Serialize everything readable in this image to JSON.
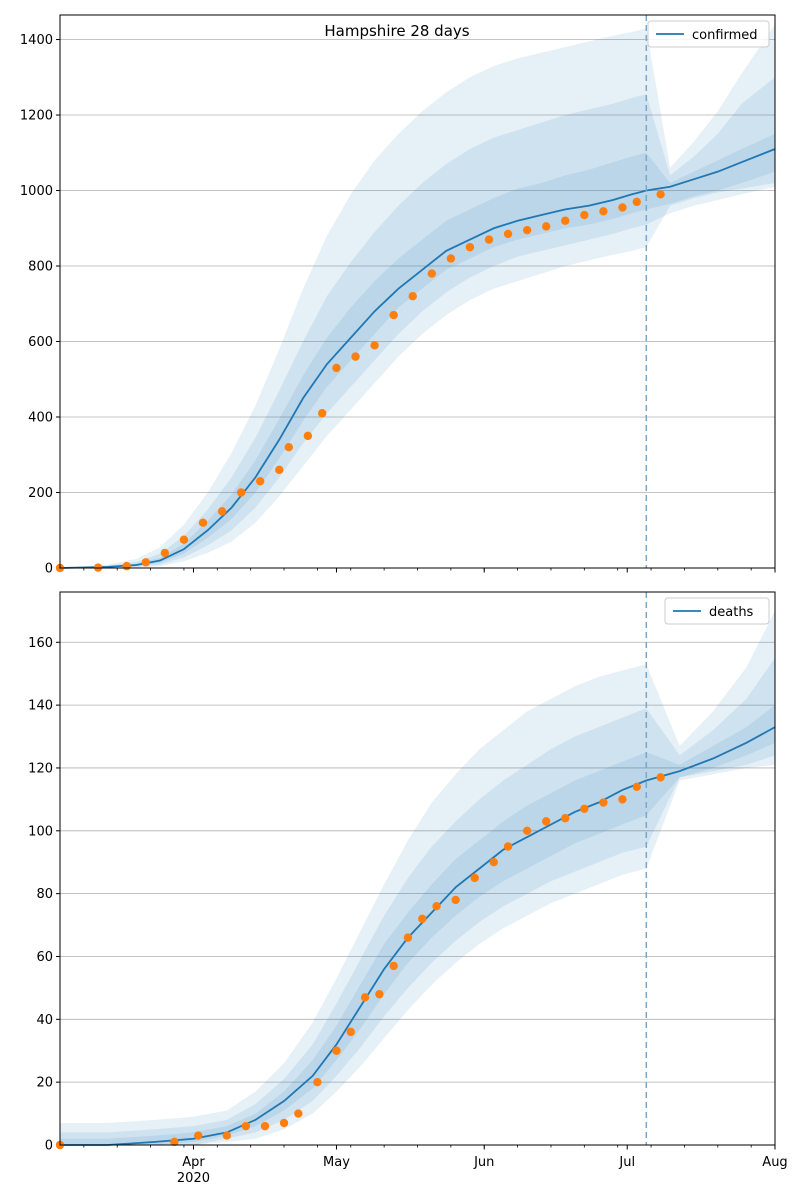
{
  "figure": {
    "title": "Hampshire 28 days"
  },
  "colors": {
    "model_line": "#1f77b4",
    "band": "#1f77b4",
    "observed": "#ff7f0e",
    "grid": "#b0b0b0",
    "cutoff_line": "#7aa6cc"
  },
  "chart_data": [
    {
      "type": "line",
      "legend": "confirmed",
      "legend_position": "top-right",
      "x_axis": {
        "type": "date",
        "range": [
          "2020-03-04",
          "2020-08-01"
        ],
        "tick_labels": []
      },
      "y_axis": {
        "range": [
          0,
          1465
        ],
        "ticks": [
          0,
          200,
          400,
          600,
          800,
          1000,
          1200,
          1400
        ]
      },
      "grid": "horizontal",
      "cutoff_date": "2020-07-05",
      "model": {
        "x": [
          "2020-03-04",
          "2020-03-14",
          "2020-03-20",
          "2020-03-25",
          "2020-03-30",
          "2020-04-04",
          "2020-04-09",
          "2020-04-14",
          "2020-04-19",
          "2020-04-24",
          "2020-04-29",
          "2020-05-04",
          "2020-05-09",
          "2020-05-14",
          "2020-05-19",
          "2020-05-24",
          "2020-05-29",
          "2020-06-03",
          "2020-06-08",
          "2020-06-13",
          "2020-06-18",
          "2020-06-23",
          "2020-06-28",
          "2020-07-02",
          "2020-07-05",
          "2020-07-10",
          "2020-07-15",
          "2020-07-20",
          "2020-07-25",
          "2020-08-01"
        ],
        "median": [
          0,
          3,
          8,
          20,
          50,
          100,
          160,
          240,
          340,
          450,
          540,
          610,
          680,
          740,
          790,
          840,
          870,
          900,
          920,
          935,
          950,
          960,
          975,
          990,
          1000,
          1010,
          1030,
          1050,
          1075,
          1110
        ],
        "band_50_low": [
          0,
          2,
          5,
          14,
          38,
          80,
          130,
          200,
          290,
          390,
          480,
          550,
          620,
          690,
          740,
          790,
          820,
          850,
          870,
          885,
          900,
          910,
          925,
          940,
          950,
          965,
          985,
          1000,
          1020,
          1050
        ],
        "band_50_high": [
          0,
          4,
          11,
          27,
          65,
          125,
          195,
          285,
          395,
          510,
          610,
          690,
          760,
          820,
          870,
          920,
          950,
          980,
          1005,
          1020,
          1040,
          1055,
          1075,
          1090,
          1100,
          1020,
          1050,
          1080,
          1110,
          1150
        ],
        "band_80_low": [
          0,
          1,
          3,
          9,
          28,
          60,
          100,
          160,
          240,
          330,
          410,
          480,
          550,
          620,
          680,
          730,
          770,
          800,
          825,
          840,
          855,
          870,
          885,
          900,
          910,
          940,
          960,
          975,
          990,
          1010
        ],
        "band_80_high": [
          0,
          6,
          16,
          38,
          85,
          155,
          240,
          345,
          470,
          600,
          720,
          810,
          890,
          960,
          1020,
          1070,
          1110,
          1140,
          1160,
          1180,
          1200,
          1215,
          1230,
          1245,
          1255,
          1040,
          1090,
          1150,
          1230,
          1300
        ],
        "band_95_low": [
          0,
          0,
          1,
          5,
          18,
          40,
          70,
          120,
          190,
          270,
          350,
          420,
          490,
          560,
          620,
          670,
          710,
          740,
          760,
          780,
          800,
          815,
          830,
          840,
          850,
          960,
          980,
          995,
          1005,
          1020
        ],
        "band_95_high": [
          0,
          9,
          24,
          55,
          115,
          200,
          305,
          430,
          580,
          740,
          880,
          990,
          1080,
          1150,
          1210,
          1260,
          1300,
          1330,
          1350,
          1365,
          1380,
          1395,
          1410,
          1420,
          1430,
          1060,
          1130,
          1210,
          1310,
          1440
        ]
      },
      "observed": {
        "x": [
          "2020-03-04",
          "2020-03-12",
          "2020-03-18",
          "2020-03-22",
          "2020-03-26",
          "2020-03-30",
          "2020-04-03",
          "2020-04-07",
          "2020-04-11",
          "2020-04-15",
          "2020-04-19",
          "2020-04-21",
          "2020-04-25",
          "2020-04-28",
          "2020-05-01",
          "2020-05-05",
          "2020-05-09",
          "2020-05-13",
          "2020-05-17",
          "2020-05-21",
          "2020-05-25",
          "2020-05-29",
          "2020-06-02",
          "2020-06-06",
          "2020-06-10",
          "2020-06-14",
          "2020-06-18",
          "2020-06-22",
          "2020-06-26",
          "2020-06-30",
          "2020-07-03",
          "2020-07-08"
        ],
        "y": [
          0,
          1,
          5,
          15,
          40,
          75,
          120,
          150,
          200,
          230,
          260,
          320,
          350,
          410,
          530,
          560,
          590,
          670,
          720,
          780,
          820,
          850,
          870,
          885,
          895,
          905,
          920,
          935,
          945,
          955,
          970,
          990
        ]
      }
    },
    {
      "type": "line",
      "legend": "deaths",
      "legend_position": "top-right",
      "x_axis": {
        "type": "date",
        "range": [
          "2020-03-04",
          "2020-08-01"
        ],
        "tick_labels": [
          {
            "date": "2020-04-01",
            "label": "Apr",
            "sub": "2020"
          },
          {
            "date": "2020-05-01",
            "label": "May",
            "sub": ""
          },
          {
            "date": "2020-06-01",
            "label": "Jun",
            "sub": ""
          },
          {
            "date": "2020-07-01",
            "label": "Jul",
            "sub": ""
          },
          {
            "date": "2020-08-01",
            "label": "Aug",
            "sub": ""
          }
        ]
      },
      "y_axis": {
        "range": [
          0,
          176
        ],
        "ticks": [
          0,
          20,
          40,
          60,
          80,
          100,
          120,
          140,
          160
        ]
      },
      "grid": "horizontal",
      "cutoff_date": "2020-07-05",
      "model": {
        "x": [
          "2020-03-04",
          "2020-03-14",
          "2020-03-24",
          "2020-04-01",
          "2020-04-08",
          "2020-04-14",
          "2020-04-20",
          "2020-04-26",
          "2020-05-01",
          "2020-05-06",
          "2020-05-11",
          "2020-05-16",
          "2020-05-21",
          "2020-05-26",
          "2020-05-31",
          "2020-06-05",
          "2020-06-10",
          "2020-06-15",
          "2020-06-20",
          "2020-06-25",
          "2020-06-30",
          "2020-07-05",
          "2020-07-12",
          "2020-07-19",
          "2020-07-26",
          "2020-08-01"
        ],
        "median": [
          0,
          0,
          1,
          2,
          4,
          8,
          14,
          22,
          32,
          44,
          56,
          66,
          74,
          82,
          88,
          94,
          98,
          102,
          106,
          109,
          113,
          116,
          119,
          123,
          128,
          133
        ],
        "band_50_low": [
          0,
          0,
          0,
          1,
          3,
          6,
          11,
          18,
          27,
          37,
          48,
          58,
          66,
          73,
          79,
          84,
          88,
          92,
          96,
          99,
          102,
          105,
          117,
          120,
          124,
          128
        ],
        "band_50_high": [
          2,
          2,
          3,
          4,
          6,
          10,
          17,
          27,
          38,
          51,
          64,
          74,
          83,
          91,
          97,
          103,
          108,
          112,
          116,
          119,
          122,
          125,
          121,
          127,
          133,
          140
        ],
        "band_80_low": [
          0,
          0,
          0,
          0,
          2,
          4,
          8,
          14,
          22,
          31,
          41,
          50,
          58,
          65,
          71,
          76,
          80,
          84,
          87,
          90,
          93,
          95,
          117,
          119,
          121,
          124
        ],
        "band_80_high": [
          4,
          4,
          5,
          6,
          8,
          13,
          21,
          32,
          45,
          59,
          73,
          85,
          95,
          103,
          110,
          116,
          121,
          126,
          130,
          133,
          136,
          139,
          124,
          132,
          142,
          155
        ],
        "band_95_low": [
          0,
          0,
          0,
          0,
          1,
          2,
          5,
          10,
          17,
          25,
          34,
          43,
          51,
          58,
          64,
          69,
          73,
          77,
          80,
          83,
          86,
          88,
          116,
          118,
          120,
          121
        ],
        "band_95_high": [
          7,
          7,
          8,
          9,
          11,
          17,
          26,
          39,
          53,
          68,
          83,
          97,
          109,
          118,
          126,
          132,
          138,
          142,
          146,
          149,
          151,
          153,
          127,
          138,
          152,
          170
        ]
      },
      "observed": {
        "x": [
          "2020-03-04",
          "2020-03-28",
          "2020-04-02",
          "2020-04-08",
          "2020-04-12",
          "2020-04-16",
          "2020-04-20",
          "2020-04-23",
          "2020-04-27",
          "2020-05-01",
          "2020-05-04",
          "2020-05-07",
          "2020-05-10",
          "2020-05-13",
          "2020-05-16",
          "2020-05-19",
          "2020-05-22",
          "2020-05-26",
          "2020-05-30",
          "2020-06-03",
          "2020-06-06",
          "2020-06-10",
          "2020-06-14",
          "2020-06-18",
          "2020-06-22",
          "2020-06-26",
          "2020-06-30",
          "2020-07-03",
          "2020-07-08"
        ],
        "y": [
          0,
          1,
          3,
          3,
          6,
          6,
          7,
          10,
          20,
          30,
          36,
          47,
          48,
          57,
          66,
          72,
          76,
          78,
          85,
          90,
          95,
          100,
          103,
          104,
          107,
          109,
          110,
          114,
          117
        ]
      }
    }
  ]
}
